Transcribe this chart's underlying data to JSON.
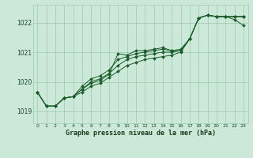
{
  "title": "Graphe pression niveau de la mer (hPa)",
  "bg_color": "#cce8d8",
  "grid_color": "#99ccaa",
  "line_color": "#1a5c2a",
  "marker_color": "#1a5c2a",
  "xlim": [
    -0.5,
    23.5
  ],
  "ylim": [
    1018.6,
    1022.6
  ],
  "yticks": [
    1019,
    1020,
    1021,
    1022
  ],
  "xticks": [
    0,
    1,
    2,
    3,
    4,
    5,
    6,
    7,
    8,
    9,
    10,
    11,
    12,
    13,
    14,
    15,
    16,
    17,
    18,
    19,
    20,
    21,
    22,
    23
  ],
  "series": [
    [
      1019.65,
      1019.18,
      1019.18,
      1019.45,
      1019.5,
      1019.75,
      1019.95,
      1020.05,
      1020.25,
      1020.95,
      1020.9,
      1021.05,
      1021.05,
      1021.1,
      1021.15,
      1021.05,
      1021.05,
      1021.45,
      1022.15,
      1022.25,
      1022.2,
      1022.2,
      1022.1,
      1021.9
    ],
    [
      1019.65,
      1019.18,
      1019.18,
      1019.45,
      1019.5,
      1019.85,
      1020.1,
      1020.2,
      1020.4,
      1020.75,
      1020.85,
      1020.95,
      1021.0,
      1021.05,
      1021.1,
      1021.05,
      1021.1,
      1021.45,
      1022.15,
      1022.25,
      1022.2,
      1022.2,
      1022.2,
      1022.2
    ],
    [
      1019.65,
      1019.18,
      1019.18,
      1019.45,
      1019.5,
      1019.75,
      1020.0,
      1020.1,
      1020.28,
      1020.55,
      1020.75,
      1020.85,
      1020.9,
      1020.95,
      1021.0,
      1021.0,
      1021.05,
      1021.45,
      1022.15,
      1022.25,
      1022.2,
      1022.2,
      1022.2,
      1022.2
    ],
    [
      1019.65,
      1019.18,
      1019.18,
      1019.45,
      1019.5,
      1019.65,
      1019.85,
      1019.95,
      1020.15,
      1020.35,
      1020.55,
      1020.65,
      1020.75,
      1020.8,
      1020.85,
      1020.9,
      1021.0,
      1021.45,
      1022.15,
      1022.25,
      1022.2,
      1022.2,
      1022.2,
      1022.2
    ]
  ]
}
